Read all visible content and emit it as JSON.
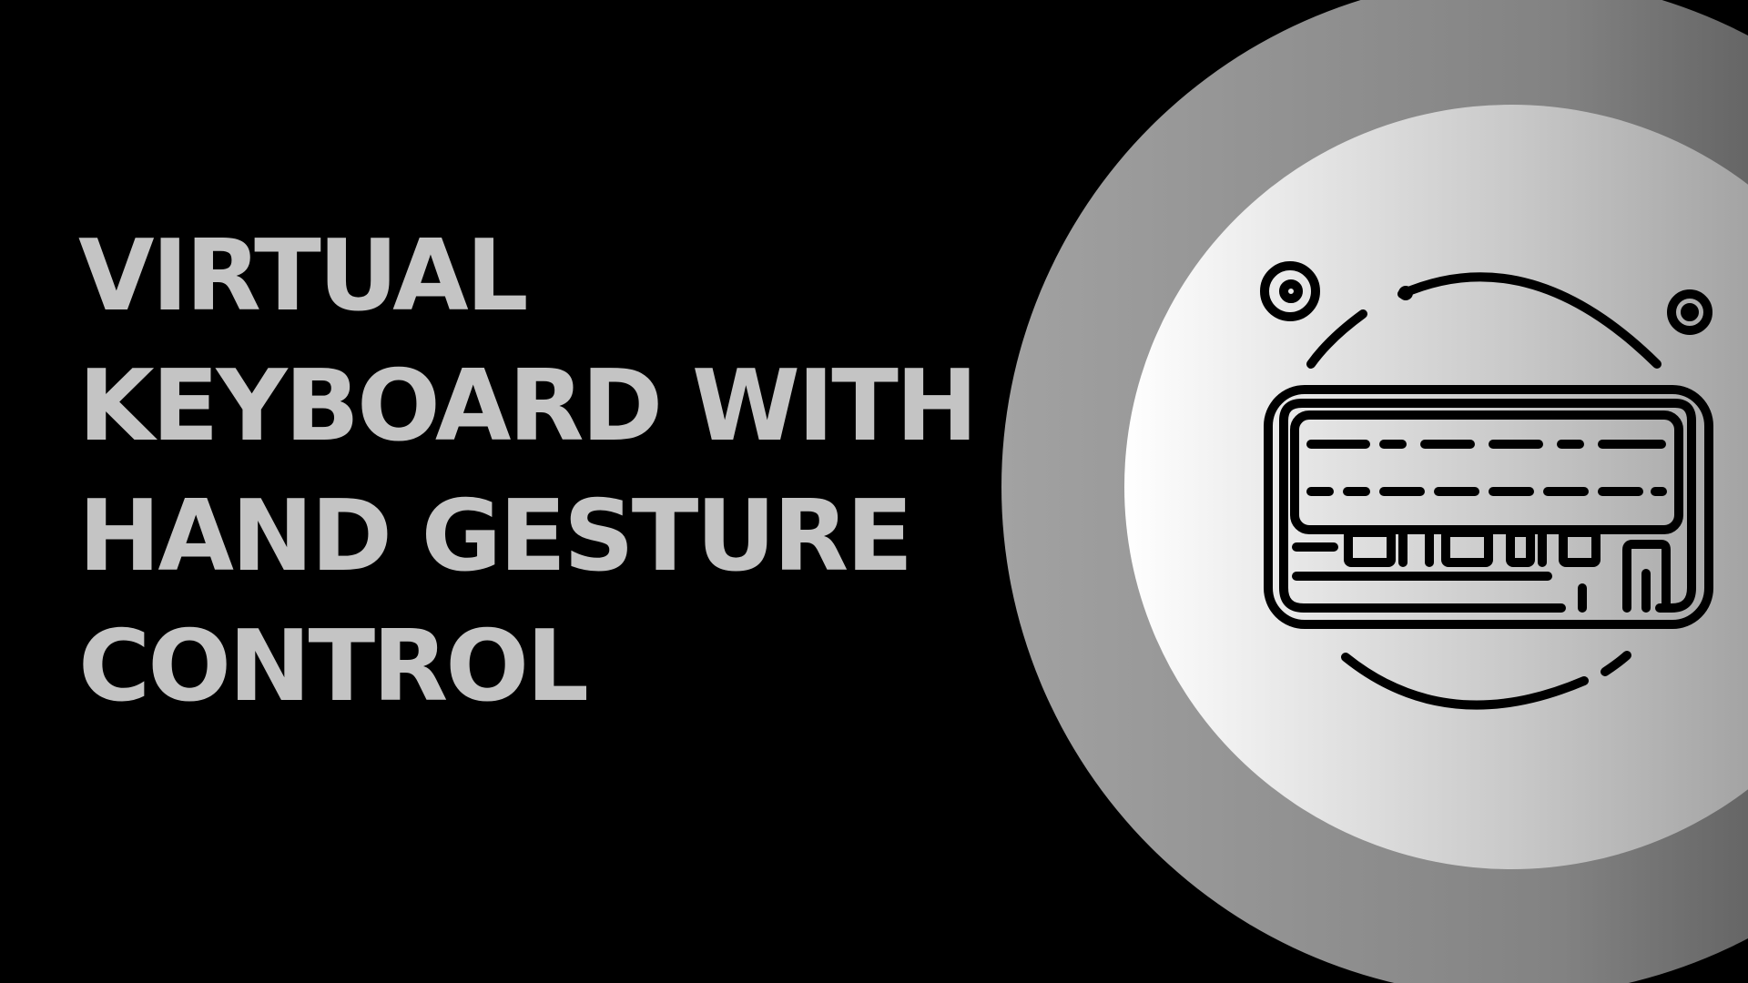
{
  "slide": {
    "title_lines": [
      "VIRTUAL",
      "KEYBOARD WITH",
      "HAND GESTURE",
      "CONTROL"
    ]
  },
  "colors": {
    "background": "#000000",
    "title_text": "#c4c4c4",
    "outer_circle_light": "#9e9e9e",
    "outer_circle_dark": "#3f3f3f",
    "inner_circle_light": "#ffffff",
    "inner_circle_dark": "#8a8a8a",
    "icon_stroke": "#000000"
  },
  "icons": {
    "illustration": "keyboard-icon"
  }
}
